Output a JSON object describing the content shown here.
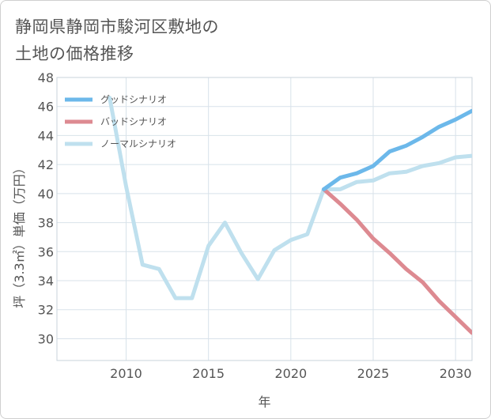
{
  "title_lines": [
    "静岡県静岡市駿河区敷地の",
    "土地の価格推移"
  ],
  "chart_data": {
    "type": "line",
    "title": "静岡県静岡市駿河区敷地の土地の価格推移",
    "xlabel": "年",
    "ylabel": "坪（3.3㎡）単価（万円）",
    "xlim": [
      2005.8,
      2031
    ],
    "ylim": [
      28.5,
      48
    ],
    "xticks": [
      2010,
      2015,
      2020,
      2025,
      2030
    ],
    "yticks": [
      30,
      32,
      34,
      36,
      38,
      40,
      42,
      44,
      46,
      48
    ],
    "legend_position": "top-left",
    "series": [
      {
        "name": "グッドシナリオ",
        "color": "#6cb8ea",
        "x": [
          2022,
          2023,
          2024,
          2025,
          2026,
          2027,
          2028,
          2029,
          2030,
          2031
        ],
        "y": [
          40.3,
          41.1,
          41.4,
          41.9,
          42.9,
          43.3,
          43.9,
          44.6,
          45.1,
          45.7
        ]
      },
      {
        "name": "バッドシナリオ",
        "color": "#dd8a91",
        "x": [
          2022,
          2023,
          2024,
          2025,
          2026,
          2027,
          2028,
          2029,
          2030,
          2031
        ],
        "y": [
          40.3,
          39.3,
          38.2,
          36.9,
          35.9,
          34.8,
          33.9,
          32.6,
          31.5,
          30.4
        ]
      },
      {
        "name": "ノーマルシナリオ",
        "color": "#bfe0ee",
        "x": [
          2009,
          2010,
          2011,
          2012,
          2013,
          2014,
          2015,
          2016,
          2017,
          2018,
          2019,
          2020,
          2021,
          2022,
          2023,
          2024,
          2025,
          2026,
          2027,
          2028,
          2029,
          2030,
          2031
        ],
        "y": [
          46.6,
          40.5,
          35.1,
          34.8,
          32.8,
          32.8,
          36.4,
          38.0,
          35.9,
          34.1,
          36.1,
          36.8,
          37.2,
          40.3,
          40.3,
          40.8,
          40.9,
          41.4,
          41.5,
          41.9,
          42.1,
          42.5,
          42.6
        ]
      }
    ]
  }
}
